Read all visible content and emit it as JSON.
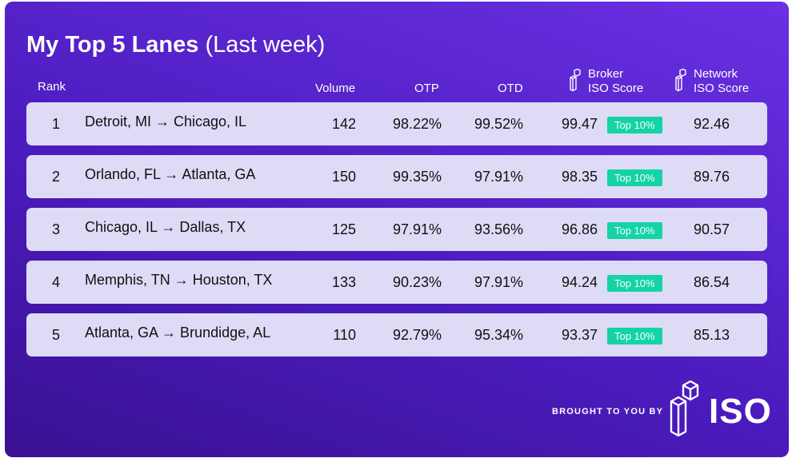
{
  "title": {
    "main": "My Top 5 Lanes",
    "sub": "(Last week)"
  },
  "headers": {
    "rank": "Rank",
    "volume": "Volume",
    "otp": "OTP",
    "otd": "OTD",
    "broker_line1": "Broker",
    "broker_line2": "ISO Score",
    "network_line1": "Network",
    "network_line2": "ISO Score"
  },
  "rows": [
    {
      "rank": "1",
      "lane": "Detroit, MI → Chicago, IL",
      "volume": "142",
      "otp": "98.22%",
      "otd": "99.52%",
      "broker": "99.47",
      "badge": "Top 10%",
      "network": "92.46"
    },
    {
      "rank": "2",
      "lane": "Orlando, FL → Atlanta, GA",
      "volume": "150",
      "otp": "99.35%",
      "otd": "97.91%",
      "broker": "98.35",
      "badge": "Top 10%",
      "network": "89.76"
    },
    {
      "rank": "3",
      "lane": "Chicago, IL → Dallas, TX",
      "volume": "125",
      "otp": "97.91%",
      "otd": "93.56%",
      "broker": "96.86",
      "badge": "Top 10%",
      "network": "90.57"
    },
    {
      "rank": "4",
      "lane": "Memphis, TN → Houston, TX",
      "volume": "133",
      "otp": "90.23%",
      "otd": "97.91%",
      "broker": "94.24",
      "badge": "Top 10%",
      "network": "86.54"
    },
    {
      "rank": "5",
      "lane": "Atlanta, GA → Brundidge, AL",
      "volume": "110",
      "otp": "92.79%",
      "otd": "95.34%",
      "broker": "93.37",
      "badge": "Top 10%",
      "network": "85.13"
    }
  ],
  "footer": {
    "brought": "BROUGHT TO YOU BY",
    "logo": "ISO"
  },
  "colors": {
    "badge": "#14d3a6",
    "row": "#dddbf6",
    "bg_dark": "#3a1192",
    "bg_light": "#6a30e2"
  }
}
